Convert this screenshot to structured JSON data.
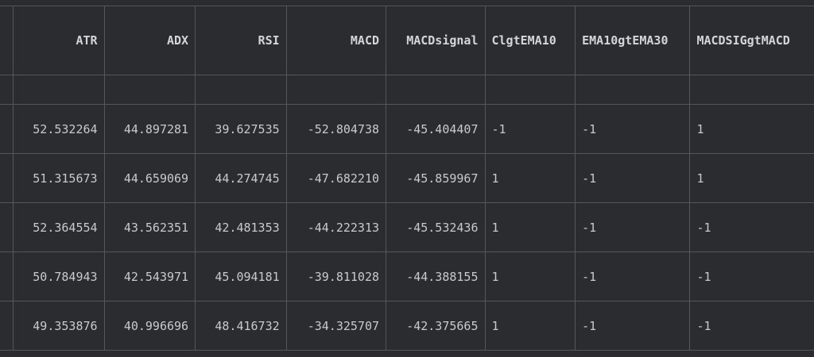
{
  "table": {
    "columns": [
      "ATR",
      "ADX",
      "RSI",
      "MACD",
      "MACDsignal",
      "ClgtEMA10",
      "EMA10gtEMA30",
      "MACDSIGgtMACD"
    ],
    "rows": [
      [
        "52.532264",
        "44.897281",
        "39.627535",
        "-52.804738",
        "-45.404407",
        "-1",
        "-1",
        "1"
      ],
      [
        "51.315673",
        "44.659069",
        "44.274745",
        "-47.682210",
        "-45.859967",
        "1",
        "-1",
        "1"
      ],
      [
        "52.364554",
        "43.562351",
        "42.481353",
        "-44.222313",
        "-45.532436",
        "1",
        "-1",
        "-1"
      ],
      [
        "50.784943",
        "42.543971",
        "45.094181",
        "-39.811028",
        "-44.388155",
        "1",
        "-1",
        "-1"
      ],
      [
        "49.353876",
        "40.996696",
        "48.416732",
        "-34.325707",
        "-42.375665",
        "1",
        "-1",
        "-1"
      ]
    ]
  }
}
